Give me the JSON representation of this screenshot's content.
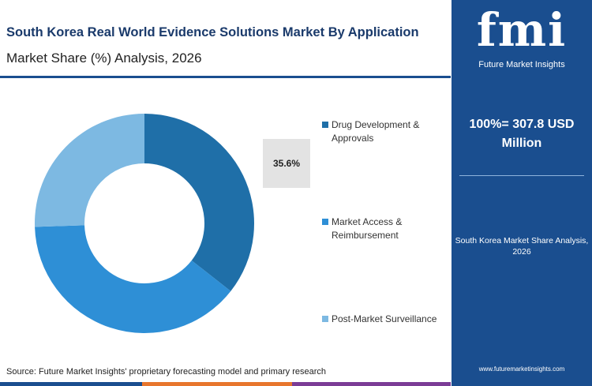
{
  "chart_data": {
    "type": "donut",
    "title": "South Korea Real World Evidence Solutions Market By Application",
    "subtitle": "Market Share (%) Analysis, 2026",
    "categories": [
      "Drug Development & Approvals",
      "Market Access & Reimbursement",
      "Post-Market Surveillance"
    ],
    "values": [
      35.6,
      38.9,
      25.5
    ],
    "value_labels": [
      "35.6%",
      null,
      null
    ],
    "colors": [
      "#1f6fa8",
      "#2e8fd6",
      "#7db9e2"
    ],
    "source": "Source: Future Market Insights' proprietary forecasting model and primary research"
  },
  "panel": {
    "logo": "fmi",
    "logo_caption": "Future Market Insights",
    "total": "100%= 307.8 USD Million",
    "caption": "South Korea Market Share Analysis, 2026",
    "url": "www.futuremarketinsights.com"
  }
}
